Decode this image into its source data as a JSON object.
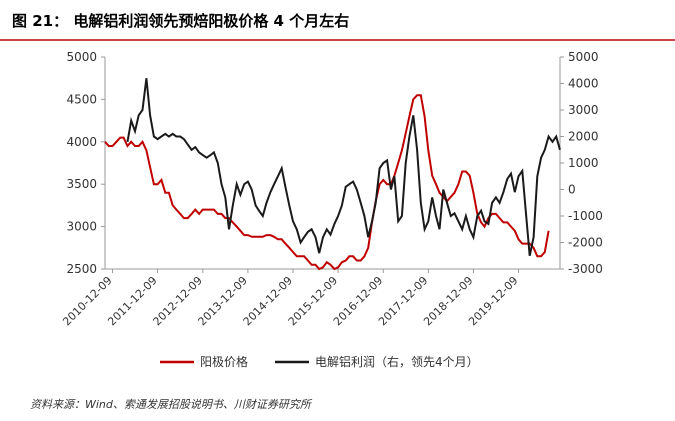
{
  "chart_data": {
    "type": "line",
    "title": "图 21： 电解铝利润领先预焙阳极价格 4 个月左右",
    "source": "资料来源：Wind、索通发展招股说明书、川财证券研究所",
    "x": [
      "2010-10-09",
      "2010-11-09",
      "2010-12-09",
      "2011-01-09",
      "2011-02-09",
      "2011-03-09",
      "2011-04-09",
      "2011-05-09",
      "2011-06-09",
      "2011-07-09",
      "2011-08-09",
      "2011-09-09",
      "2011-10-09",
      "2011-11-09",
      "2011-12-09",
      "2012-01-09",
      "2012-02-09",
      "2012-03-09",
      "2012-04-09",
      "2012-05-09",
      "2012-06-09",
      "2012-07-09",
      "2012-08-09",
      "2012-09-09",
      "2012-10-09",
      "2012-11-09",
      "2012-12-09",
      "2013-01-09",
      "2013-02-09",
      "2013-03-09",
      "2013-04-09",
      "2013-05-09",
      "2013-06-09",
      "2013-07-09",
      "2013-08-09",
      "2013-09-09",
      "2013-10-09",
      "2013-11-09",
      "2013-12-09",
      "2014-01-09",
      "2014-02-09",
      "2014-03-09",
      "2014-04-09",
      "2014-05-09",
      "2014-06-09",
      "2014-07-09",
      "2014-08-09",
      "2014-09-09",
      "2014-10-09",
      "2014-11-09",
      "2014-12-09",
      "2015-01-09",
      "2015-02-09",
      "2015-03-09",
      "2015-04-09",
      "2015-05-09",
      "2015-06-09",
      "2015-07-09",
      "2015-08-09",
      "2015-09-09",
      "2015-10-09",
      "2015-11-09",
      "2015-12-09",
      "2016-01-09",
      "2016-02-09",
      "2016-03-09",
      "2016-04-09",
      "2016-05-09",
      "2016-06-09",
      "2016-07-09",
      "2016-08-09",
      "2016-09-09",
      "2016-10-09",
      "2016-11-09",
      "2016-12-09",
      "2017-01-09",
      "2017-02-09",
      "2017-03-09",
      "2017-04-09",
      "2017-05-09",
      "2017-06-09",
      "2017-07-09",
      "2017-08-09",
      "2017-09-09",
      "2017-10-09",
      "2017-11-09",
      "2017-12-09",
      "2018-01-09",
      "2018-02-09",
      "2018-03-09",
      "2018-04-09",
      "2018-05-09",
      "2018-06-09",
      "2018-07-09",
      "2018-08-09",
      "2018-09-09",
      "2018-10-09",
      "2018-11-09",
      "2018-12-09",
      "2019-01-09",
      "2019-02-09",
      "2019-03-09",
      "2019-04-09",
      "2019-05-09",
      "2019-06-09",
      "2019-07-09",
      "2019-08-09",
      "2019-09-09",
      "2019-10-09",
      "2019-11-09",
      "2019-12-09",
      "2020-01-09",
      "2020-02-09",
      "2020-03-09",
      "2020-04-09",
      "2020-05-09",
      "2020-06-09",
      "2020-07-09",
      "2020-08-09",
      "2020-09-09",
      "2020-10-09",
      "2020-11-09"
    ],
    "xlim": [
      "2010-10-09",
      "2020-11-09"
    ],
    "xticks": [
      "2010-12-09",
      "2011-12-09",
      "2012-12-09",
      "2013-12-09",
      "2014-12-09",
      "2015-12-09",
      "2016-12-09",
      "2017-12-09",
      "2018-12-09",
      "2019-12-09"
    ],
    "ylim": [
      2500,
      5000
    ],
    "yticks": [
      2500,
      3000,
      3500,
      4000,
      4500,
      5000
    ],
    "y2lim": [
      -3000,
      5000
    ],
    "y2ticks": [
      -3000,
      -2000,
      -1000,
      0,
      1000,
      2000,
      3000,
      4000,
      5000
    ],
    "legend": "bottom",
    "series": [
      {
        "name": "阳极价格",
        "color": "#c00000",
        "values": [
          4000,
          3950,
          3950,
          4000,
          4050,
          4050,
          3950,
          4000,
          3950,
          3950,
          4000,
          3900,
          3700,
          3500,
          3500,
          3550,
          3400,
          3400,
          3250,
          3200,
          3150,
          3100,
          3100,
          3150,
          3200,
          3150,
          3200,
          3200,
          3200,
          3200,
          3150,
          3150,
          3100,
          3100,
          3050,
          3000,
          2950,
          2900,
          2900,
          2880,
          2880,
          2880,
          2880,
          2900,
          2900,
          2880,
          2850,
          2850,
          2800,
          2750,
          2700,
          2650,
          2650,
          2650,
          2600,
          2550,
          2550,
          2500,
          2520,
          2580,
          2550,
          2500,
          2520,
          2580,
          2600,
          2650,
          2650,
          2600,
          2600,
          2650,
          2750,
          3050,
          3300,
          3500,
          3550,
          3500,
          3500,
          3600,
          3750,
          3900,
          4100,
          4300,
          4500,
          4550,
          4550,
          4300,
          3900,
          3600,
          3500,
          3400,
          3350,
          3300,
          3350,
          3400,
          3500,
          3650,
          3650,
          3600,
          3400,
          3150,
          3050,
          3000,
          3100,
          3150,
          3150,
          3100,
          3050,
          3050,
          3000,
          2950,
          2850,
          2800,
          2800,
          2800,
          2750,
          2650,
          2650,
          2700,
          2950,
          null,
          null,
          null
        ]
      },
      {
        "name": "电解铝利润（右，领先4个月）",
        "color": "#1a1a1a",
        "axis": "y2",
        "values": [
          null,
          null,
          null,
          null,
          null,
          null,
          1800,
          2600,
          2200,
          2800,
          3000,
          4200,
          2800,
          2000,
          1900,
          2000,
          2100,
          2000,
          2100,
          2000,
          2000,
          1900,
          1700,
          1500,
          1600,
          1400,
          1300,
          1200,
          1300,
          1400,
          1000,
          200,
          -300,
          -1500,
          -600,
          200,
          -200,
          200,
          300,
          0,
          -600,
          -800,
          -1000,
          -500,
          -100,
          200,
          500,
          800,
          100,
          -600,
          -1200,
          -1500,
          -2000,
          -1800,
          -1600,
          -1500,
          -1800,
          -2400,
          -1800,
          -1500,
          -1700,
          -1300,
          -1000,
          -600,
          100,
          200,
          300,
          0,
          -500,
          -1000,
          -1800,
          -1200,
          -500,
          800,
          1000,
          1100,
          0,
          500,
          -1200,
          -1000,
          1000,
          2000,
          2800,
          1500,
          -500,
          -1500,
          -1200,
          -300,
          -1000,
          -1500,
          0,
          -500,
          -1000,
          -900,
          -1200,
          -1500,
          -1000,
          -1500,
          -1800,
          -1000,
          -800,
          -1200,
          -1300,
          -500,
          -300,
          -500,
          -100,
          400,
          600,
          -100,
          500,
          700,
          -1000,
          -2500,
          -1800,
          500,
          1200,
          1500,
          2000,
          1800,
          2000,
          1500
        ]
      }
    ]
  }
}
